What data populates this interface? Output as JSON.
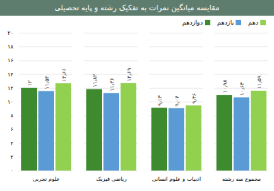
{
  "chart_data": {
    "type": "bar",
    "title": "مقایسه میانگین نمرات به تفکیک رشته و پایه تحصیلی",
    "categories": [
      "علوم تجربی",
      "ریاضی فیزیک",
      "ادبیات و علوم انسانی",
      "مجموع سه رشته"
    ],
    "series": [
      {
        "name": "دوازدهم",
        "color": "#3e8a2e",
        "values": [
          12,
          11.82,
          9.13,
          10.98
        ],
        "value_labels": [
          "۱۲",
          "۱۱٫۸۲",
          "۹٫۱۳",
          "۱۰٫۹۸"
        ]
      },
      {
        "name": "یازدهم",
        "color": "#5b9bd5",
        "values": [
          11.54,
          11.26,
          9.07,
          10.63
        ],
        "value_labels": [
          "۱۱٫۵۴",
          "۱۱٫۲۶",
          "۹٫۰۷",
          "۱۰٫۶۳"
        ]
      },
      {
        "name": "دهم",
        "color": "#92d050",
        "values": [
          12.66,
          12.69,
          9.46,
          11.59
        ],
        "value_labels": [
          "۱۲٫۶۶",
          "۱۲٫۶۹",
          "۹٫۴۶",
          "۱۱٫۵۹"
        ]
      }
    ],
    "ylim": [
      0,
      20
    ],
    "yticks": [
      {
        "value": 0,
        "label": "۰"
      },
      {
        "value": 2,
        "label": "۲"
      },
      {
        "value": 4,
        "label": "۴"
      },
      {
        "value": 6,
        "label": "۶"
      },
      {
        "value": 8,
        "label": "۸"
      },
      {
        "value": 10,
        "label": "۱۰"
      },
      {
        "value": 12,
        "label": "۱۲"
      },
      {
        "value": 14,
        "label": "۱۴"
      },
      {
        "value": 16,
        "label": "۱۶"
      },
      {
        "value": 18,
        "label": "۱۸"
      },
      {
        "value": 20,
        "label": "۲۰"
      }
    ],
    "grid": true,
    "legend": "top-right",
    "data_labels": true
  }
}
